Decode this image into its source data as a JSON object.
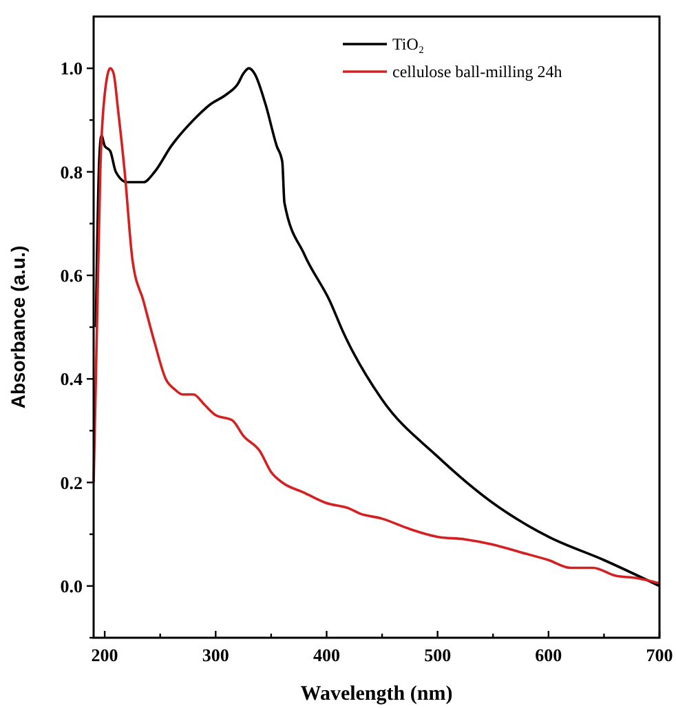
{
  "chart_data": {
    "type": "line",
    "xlabel": "Wavelength (nm)",
    "ylabel": "Absorbance (a.u.)",
    "xlim": [
      190,
      700
    ],
    "ylim": [
      -0.1,
      1.1
    ],
    "xticks": [
      200,
      {
        "value": 250,
        "label": null
      },
      300,
      {
        "value": 350,
        "label": null
      },
      400,
      {
        "value": 450,
        "label": null
      },
      500,
      {
        "value": 550,
        "label": null
      },
      600,
      {
        "value": 650,
        "label": null
      },
      700
    ],
    "yticks": [
      {
        "value": -0.1,
        "label": null
      },
      {
        "value": 0,
        "label": "0.0"
      },
      {
        "value": 0.1,
        "label": null
      },
      {
        "value": 0.2,
        "label": "0.2"
      },
      {
        "value": 0.3,
        "label": null
      },
      {
        "value": 0.4,
        "label": "0.4"
      },
      {
        "value": 0.5,
        "label": null
      },
      {
        "value": 0.6,
        "label": "0.6"
      },
      {
        "value": 0.7,
        "label": null
      },
      {
        "value": 0.8,
        "label": "0.8"
      },
      {
        "value": 0.9,
        "label": null
      },
      {
        "value": 1,
        "label": "1.0"
      }
    ],
    "legend": "top right",
    "grid": false,
    "marker": "none",
    "line_style": "solid",
    "series": [
      {
        "name": "TiO₂",
        "color": "#000000",
        "x": [
          192,
          195,
          197,
          200,
          205,
          210,
          220,
          230,
          235,
          245,
          260,
          280,
          295,
          310,
          320,
          325,
          330,
          335,
          345,
          355,
          360,
          362,
          380,
          403,
          415,
          450,
          500,
          550,
          600,
          650,
          700
        ],
        "values": [
          0.5,
          0.82,
          0.87,
          0.85,
          0.84,
          0.8,
          0.78,
          0.78,
          0.78,
          0.8,
          0.85,
          0.9,
          0.93,
          0.95,
          0.97,
          0.99,
          1.0,
          0.99,
          0.93,
          0.85,
          0.82,
          0.74,
          0.64,
          0.55,
          0.49,
          0.36,
          0.25,
          0.16,
          0.095,
          0.05,
          0.0
        ]
      },
      {
        "name": "cellulose ball-milling 24h",
        "color": "#d42020",
        "x": [
          190,
          193,
          196,
          200,
          205,
          208,
          212,
          218,
          225,
          235,
          245,
          255,
          263,
          270,
          280,
          290,
          300,
          315,
          325,
          340,
          350,
          360,
          380,
          400,
          420,
          430,
          450,
          475,
          500,
          525,
          550,
          575,
          600,
          620,
          640,
          660,
          680,
          700
        ],
        "values": [
          0.2,
          0.5,
          0.8,
          0.95,
          1.0,
          0.99,
          0.92,
          0.8,
          0.63,
          0.55,
          0.47,
          0.4,
          0.38,
          0.37,
          0.37,
          0.35,
          0.33,
          0.32,
          0.29,
          0.26,
          0.22,
          0.2,
          0.18,
          0.16,
          0.15,
          0.14,
          0.13,
          0.11,
          0.095,
          0.09,
          0.08,
          0.065,
          0.05,
          0.035,
          0.035,
          0.02,
          0.015,
          0.005
        ]
      }
    ]
  }
}
